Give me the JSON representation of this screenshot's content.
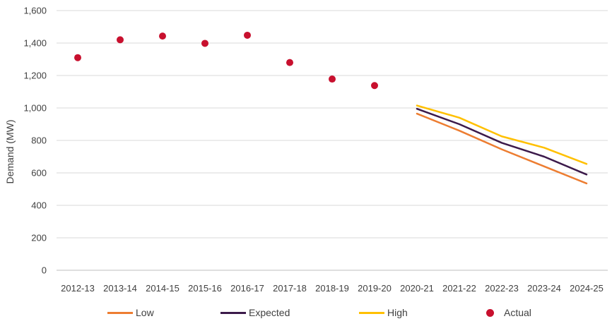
{
  "chart_data": {
    "type": "line",
    "ylabel": "Demand (MW)",
    "xlabel": "",
    "ylim": [
      0,
      1600
    ],
    "yticks": [
      0,
      200,
      400,
      600,
      800,
      1000,
      1200,
      1400,
      1600
    ],
    "ytick_labels": [
      "0",
      "200",
      "400",
      "600",
      "800",
      "1,000",
      "1,200",
      "1,400",
      "1,600"
    ],
    "grid": true,
    "legend_position": "bottom",
    "categories": [
      "2012-13",
      "2013-14",
      "2014-15",
      "2015-16",
      "2016-17",
      "2017-18",
      "2018-19",
      "2019-20",
      "2020-21",
      "2021-22",
      "2022-23",
      "2023-24",
      "2024-25"
    ],
    "series": [
      {
        "name": "Low",
        "kind": "line",
        "color": "#ED7D31",
        "values": [
          null,
          null,
          null,
          null,
          null,
          null,
          null,
          null,
          965,
          860,
          745,
          640,
          535
        ]
      },
      {
        "name": "Expected",
        "kind": "line",
        "color": "#3C1A4A",
        "values": [
          null,
          null,
          null,
          null,
          null,
          null,
          null,
          null,
          995,
          900,
          785,
          700,
          590
        ]
      },
      {
        "name": "High",
        "kind": "line",
        "color": "#FFC000",
        "values": [
          null,
          null,
          null,
          null,
          null,
          null,
          null,
          null,
          1015,
          940,
          825,
          755,
          655
        ]
      },
      {
        "name": "Actual",
        "kind": "scatter",
        "color": "#C8102E",
        "values": [
          1310,
          1420,
          1443,
          1398,
          1448,
          1280,
          1178,
          1138,
          null,
          null,
          null,
          null,
          null
        ]
      }
    ]
  }
}
